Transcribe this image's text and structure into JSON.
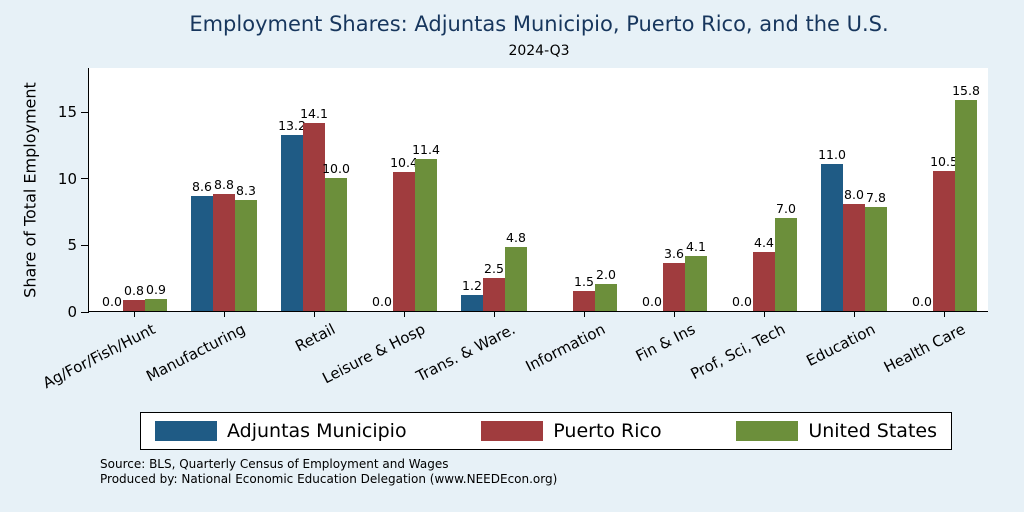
{
  "source": {
    "line1": "Source: BLS, Quarterly Census of Employment and Wages",
    "line2": "Produced by: National Economic Education Delegation (www.NEEDEcon.org)"
  },
  "colors": {
    "background": "#e7f1f7",
    "title_text": "#17365d",
    "plot_background": "#ffffff",
    "axis": "#000000"
  },
  "chart_data": {
    "type": "bar",
    "title": "Employment Shares: Adjuntas Municipio, Puerto Rico, and the U.S.",
    "subtitle": "2024-Q3",
    "ylabel": "Share of Total Employment",
    "xlabel": "",
    "categories": [
      "Ag/For/Fish/Hunt",
      "Manufacturing",
      "Retail",
      "Leisure & Hosp",
      "Trans. & Ware.",
      "Information",
      "Fin & Ins",
      "Prof, Sci, Tech",
      "Education",
      "Health Care"
    ],
    "series": [
      {
        "name": "Adjuntas Municipio",
        "color": "#1f5b85",
        "values": [
          0.0,
          8.6,
          13.2,
          0.0,
          1.2,
          null,
          0.0,
          0.0,
          11.0,
          0.0
        ]
      },
      {
        "name": "Puerto Rico",
        "color": "#a03c3e",
        "values": [
          0.8,
          8.8,
          14.1,
          10.4,
          2.5,
          1.5,
          3.6,
          4.4,
          8.0,
          10.5
        ]
      },
      {
        "name": "United States",
        "color": "#6c8f3b",
        "values": [
          0.9,
          8.3,
          10.0,
          11.4,
          4.8,
          2.0,
          4.1,
          7.0,
          7.8,
          15.8
        ]
      }
    ],
    "yticks": [
      0,
      5,
      10,
      15
    ],
    "ylim": [
      0,
      18.3
    ],
    "grid": false,
    "value_labels": true,
    "value_label_format": "0.0",
    "legend_position": "bottom"
  }
}
